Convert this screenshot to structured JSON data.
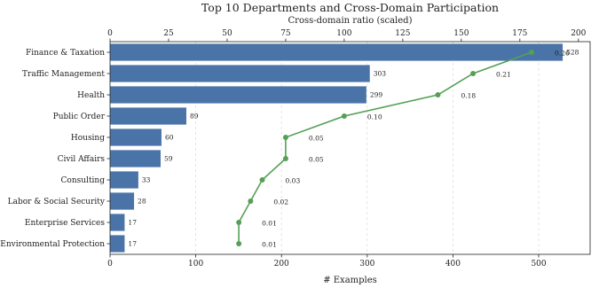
{
  "chart_data": {
    "type": "bar",
    "orientation": "horizontal",
    "title": "Top 10 Departments and Cross-Domain Participation",
    "xlabel": "# Examples",
    "x2label": "Cross-domain ratio (scaled)",
    "xlim": [
      0,
      560
    ],
    "x2lim": [
      0,
      205
    ],
    "xticks": [
      0,
      100,
      200,
      300,
      400,
      500
    ],
    "x2ticks": [
      0,
      25,
      50,
      75,
      100,
      125,
      150,
      175,
      200
    ],
    "grid": true,
    "categories": [
      "Finance & Taxation",
      "Traffic Management",
      "Health",
      "Public Order",
      "Housing",
      "Civil Affairs",
      "Consulting",
      "Labor & Social Security",
      "Enterprise Services",
      "Environmental Protection"
    ],
    "series": [
      {
        "type": "bar",
        "axis": "bottom",
        "values": [
          528,
          303,
          299,
          89,
          60,
          59,
          33,
          28,
          17,
          17
        ],
        "labels": [
          "528",
          "303",
          "299",
          "89",
          "60",
          "59",
          "33",
          "28",
          "17",
          "17"
        ]
      },
      {
        "type": "line",
        "axis": "top",
        "values": [
          0.26,
          0.21,
          0.18,
          0.1,
          0.05,
          0.05,
          0.03,
          0.02,
          0.01,
          0.01
        ],
        "scaled_values": [
          180,
          155,
          140,
          100,
          75,
          75,
          65,
          60,
          55,
          55
        ],
        "labels": [
          "0.26",
          "0.21",
          "0.18",
          "0.10",
          "0.05",
          "0.05",
          "0.03",
          "0.02",
          "0.01",
          "0.01"
        ]
      }
    ],
    "colors": {
      "bar": "#4a74a8",
      "line": "#55a055"
    }
  }
}
